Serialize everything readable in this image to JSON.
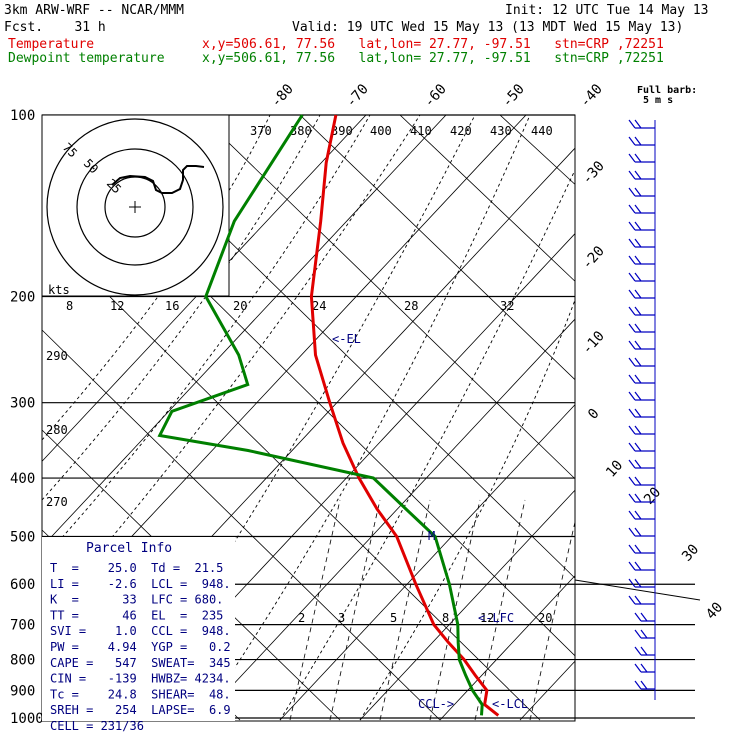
{
  "header": {
    "model": "3km ARW-WRF -- NCAR/MMM",
    "init": "Init: 12 UTC Tue 14 May 13",
    "fcst": "Fcst.    31 h",
    "valid": "Valid: 19 UTC Wed 15 May 13 (13 MDT Wed 15 May 13)",
    "temp_label": "Temperature",
    "temp_info": "x,y=506.61, 77.56   lat,lon= 27.77, -97.51   stn=CRP ,72251",
    "dew_label": "Dewpoint temperature",
    "dew_info": "x,y=506.61, 77.56   lat,lon= 27.77, -97.51   stn=CRP ,72251",
    "barb_note_1": "Full barb:",
    "barb_note_2": "5 m s"
  },
  "parcel_info": {
    "title": "Parcel Info",
    "rows": [
      "T  =    25.0  Td =  21.5",
      "LI =    -2.6  LCL =  948.",
      "K  =      33  LFC = 680.",
      "TT =      46  EL  =  235",
      "SVI =    1.0  CCL =  948.",
      "PW =    4.94  YGP =   0.2",
      "CAPE =   547  SWEAT=  345",
      "CIN =   -139  HWBZ= 4234.",
      "Tc =    24.8  SHEAR=  48.",
      "SREH =   254  LAPSE=  6.9",
      "CELL = 231/36"
    ]
  },
  "hodograph": {
    "ring_labels": [
      "75",
      "50",
      "25"
    ],
    "speed_unit": "kts",
    "speed_ticks": [
      "8",
      "12",
      "16",
      "20",
      "24",
      "28",
      "32"
    ]
  },
  "pressure_labels": [
    "100",
    "200",
    "300",
    "400",
    "500",
    "600",
    "700",
    "800",
    "900",
    "1000"
  ],
  "isotherm_labels": [
    "-80",
    "-70",
    "-60",
    "-50",
    "-40",
    "-30",
    "-20",
    "-10",
    "0",
    "10",
    "20",
    "30",
    "40"
  ],
  "theta_labels": [
    "370",
    "380",
    "390",
    "400",
    "410",
    "420",
    "430",
    "440",
    "290",
    "280",
    "270"
  ],
  "mixing_labels": [
    "2",
    "3",
    "5",
    "8",
    "12",
    "20"
  ],
  "markers": {
    "el": "<-EL",
    "lfc": "<-LFC",
    "ccl": "CCL->",
    "lcl": "<-LCL",
    "m": "M"
  },
  "colors": {
    "temperature": "#e00000",
    "dewpoint": "#008000",
    "isobar": "#000000",
    "info_text": "#000080",
    "barbs": "#0000c0"
  },
  "chart_data": {
    "type": "line",
    "title": "",
    "xlabel": "",
    "ylabel": "",
    "y_scale": "log-pressure",
    "ylim": [
      1000,
      100
    ],
    "series": [
      {
        "name": "Temperature",
        "x": [
          25.0,
          21.0,
          20.0,
          16.0,
          12.0,
          7.0,
          2.0,
          -6.0,
          -15.0,
          -22.0,
          -29.0,
          -36.0,
          -43.0,
          -51.0,
          -58.0,
          -64.0,
          -69.0,
          -72.0
        ],
        "y": [
          990,
          950,
          900,
          850,
          800,
          750,
          700,
          600,
          500,
          450,
          400,
          350,
          300,
          250,
          200,
          150,
          120,
          100
        ]
      },
      {
        "name": "Dewpoint temperature",
        "x": [
          21.5,
          20.5,
          17.0,
          14.0,
          11.0,
          9.0,
          7.0,
          1.0,
          -7.0,
          -16.0,
          -26.0,
          -55.0,
          -75.0,
          -75.0,
          -62.0,
          -67.0,
          -80.0,
          -82.0,
          -79.0
        ],
        "y": [
          990,
          950,
          900,
          850,
          800,
          750,
          700,
          600,
          500,
          450,
          400,
          360,
          340,
          310,
          280,
          250,
          200,
          150,
          100
        ]
      }
    ]
  }
}
